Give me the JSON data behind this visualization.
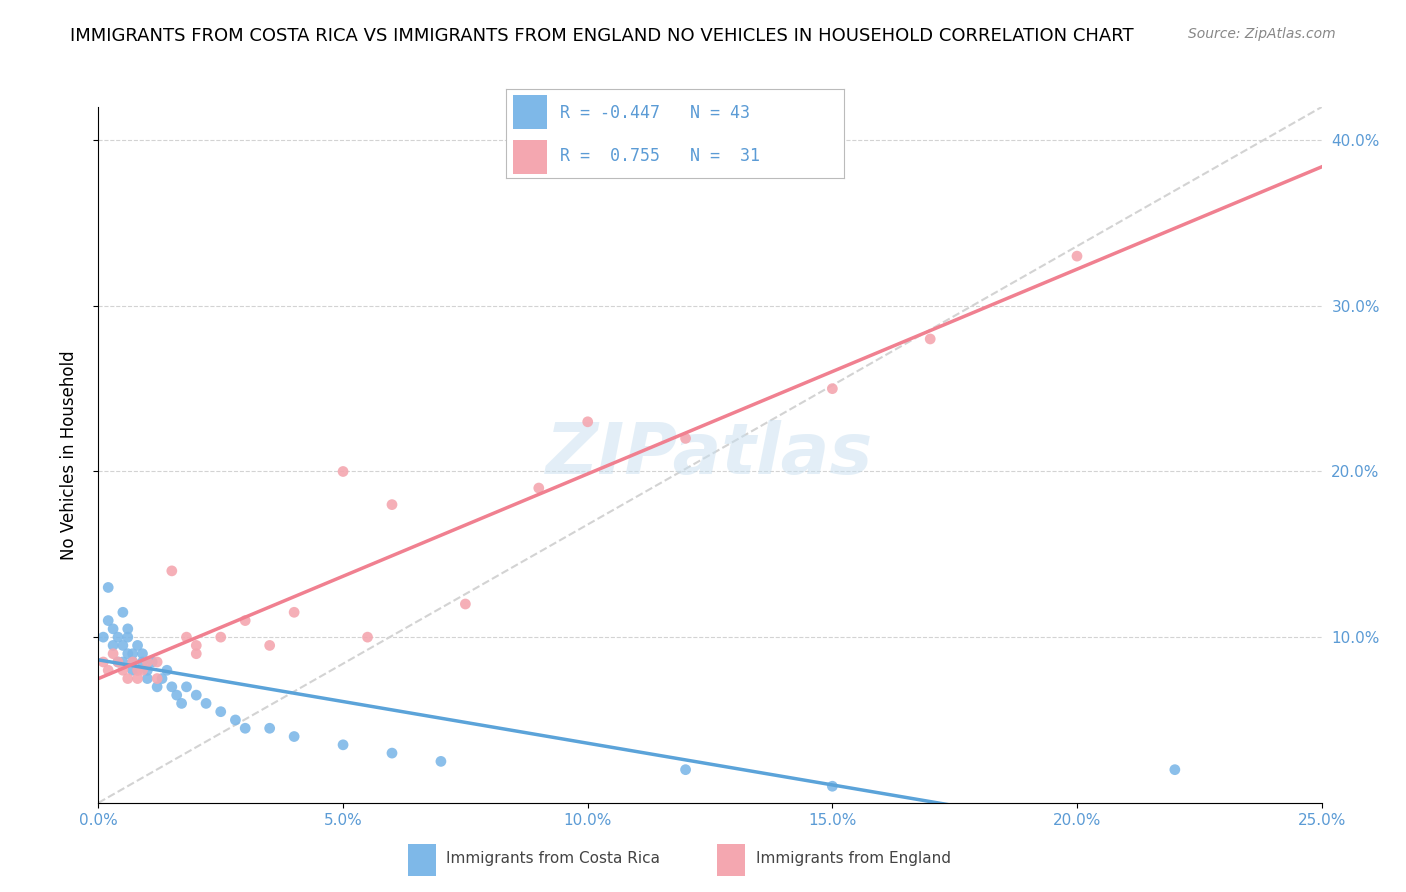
{
  "title": "IMMIGRANTS FROM COSTA RICA VS IMMIGRANTS FROM ENGLAND NO VEHICLES IN HOUSEHOLD CORRELATION CHART",
  "source": "Source: ZipAtlas.com",
  "ylabel": "No Vehicles in Household",
  "color_cr": "#7eb8e8",
  "color_eng": "#f4a7b0",
  "color_cr_line": "#5ba3d9",
  "color_eng_line": "#f08090",
  "watermark": "ZIPatlas",
  "xlim": [
    0.0,
    0.25
  ],
  "ylim": [
    0.0,
    0.42
  ],
  "cr_scatter_x": [
    0.001,
    0.002,
    0.002,
    0.003,
    0.003,
    0.004,
    0.004,
    0.005,
    0.005,
    0.005,
    0.006,
    0.006,
    0.006,
    0.007,
    0.007,
    0.007,
    0.008,
    0.008,
    0.009,
    0.009,
    0.01,
    0.01,
    0.011,
    0.012,
    0.013,
    0.014,
    0.015,
    0.016,
    0.017,
    0.018,
    0.02,
    0.022,
    0.025,
    0.028,
    0.03,
    0.035,
    0.04,
    0.05,
    0.06,
    0.07,
    0.12,
    0.15,
    0.22
  ],
  "cr_scatter_y": [
    0.1,
    0.11,
    0.13,
    0.095,
    0.105,
    0.085,
    0.1,
    0.115,
    0.095,
    0.085,
    0.09,
    0.1,
    0.105,
    0.08,
    0.085,
    0.09,
    0.095,
    0.08,
    0.085,
    0.09,
    0.075,
    0.08,
    0.085,
    0.07,
    0.075,
    0.08,
    0.07,
    0.065,
    0.06,
    0.07,
    0.065,
    0.06,
    0.055,
    0.05,
    0.045,
    0.045,
    0.04,
    0.035,
    0.03,
    0.025,
    0.02,
    0.01,
    0.02
  ],
  "eng_scatter_x": [
    0.001,
    0.002,
    0.003,
    0.004,
    0.005,
    0.006,
    0.007,
    0.008,
    0.01,
    0.012,
    0.015,
    0.018,
    0.02,
    0.025,
    0.03,
    0.04,
    0.05,
    0.06,
    0.075,
    0.09,
    0.1,
    0.12,
    0.15,
    0.17,
    0.2,
    0.008,
    0.009,
    0.012,
    0.02,
    0.035,
    0.055
  ],
  "eng_scatter_y": [
    0.085,
    0.08,
    0.09,
    0.085,
    0.08,
    0.075,
    0.085,
    0.08,
    0.085,
    0.075,
    0.14,
    0.1,
    0.095,
    0.1,
    0.11,
    0.115,
    0.2,
    0.18,
    0.12,
    0.19,
    0.23,
    0.22,
    0.25,
    0.28,
    0.33,
    0.075,
    0.08,
    0.085,
    0.09,
    0.095,
    0.1
  ]
}
